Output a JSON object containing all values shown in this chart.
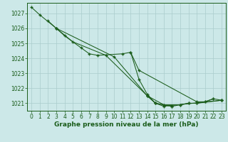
{
  "bg_color": "#cce8e8",
  "grid_color": "#aacccc",
  "line_color": "#1a5c1a",
  "xlabel": "Graphe pression niveau de la mer (hPa)",
  "ylim": [
    1020.5,
    1027.7
  ],
  "xlim": [
    -0.5,
    23.5
  ],
  "yticks": [
    1021,
    1022,
    1023,
    1024,
    1025,
    1026,
    1027
  ],
  "xticks": [
    0,
    1,
    2,
    3,
    4,
    5,
    6,
    7,
    8,
    9,
    10,
    11,
    12,
    13,
    14,
    15,
    16,
    17,
    18,
    19,
    20,
    21,
    22,
    23
  ],
  "s1_x": [
    0,
    1,
    3,
    4,
    6,
    7,
    8,
    11,
    12,
    13,
    20,
    21,
    22
  ],
  "s1_y": [
    1027.4,
    1026.9,
    1026.0,
    1025.5,
    1024.7,
    1024.3,
    1024.2,
    1024.3,
    1024.4,
    1023.2,
    1021.1,
    1021.1,
    1021.3
  ],
  "s2_x": [
    2,
    3,
    5,
    9,
    14,
    15,
    16,
    17
  ],
  "s2_y": [
    1026.5,
    1026.0,
    1025.1,
    1024.2,
    1021.5,
    1021.0,
    1020.9,
    1020.8
  ],
  "s3_x": [
    3,
    10,
    14,
    16,
    18,
    19,
    20,
    23
  ],
  "s3_y": [
    1026.0,
    1024.1,
    1021.5,
    1020.9,
    1020.9,
    1021.0,
    1021.0,
    1021.2
  ],
  "s4_x": [
    12,
    13,
    14,
    15,
    16,
    23
  ],
  "s4_y": [
    1024.4,
    1022.6,
    1021.6,
    1021.0,
    1020.8,
    1021.2
  ],
  "s5_x": [
    14,
    15,
    17,
    18,
    19,
    20,
    21,
    22,
    23
  ],
  "s5_y": [
    1021.5,
    1021.0,
    1020.8,
    1020.9,
    1021.0,
    1021.0,
    1021.1,
    1021.3,
    1021.2
  ]
}
